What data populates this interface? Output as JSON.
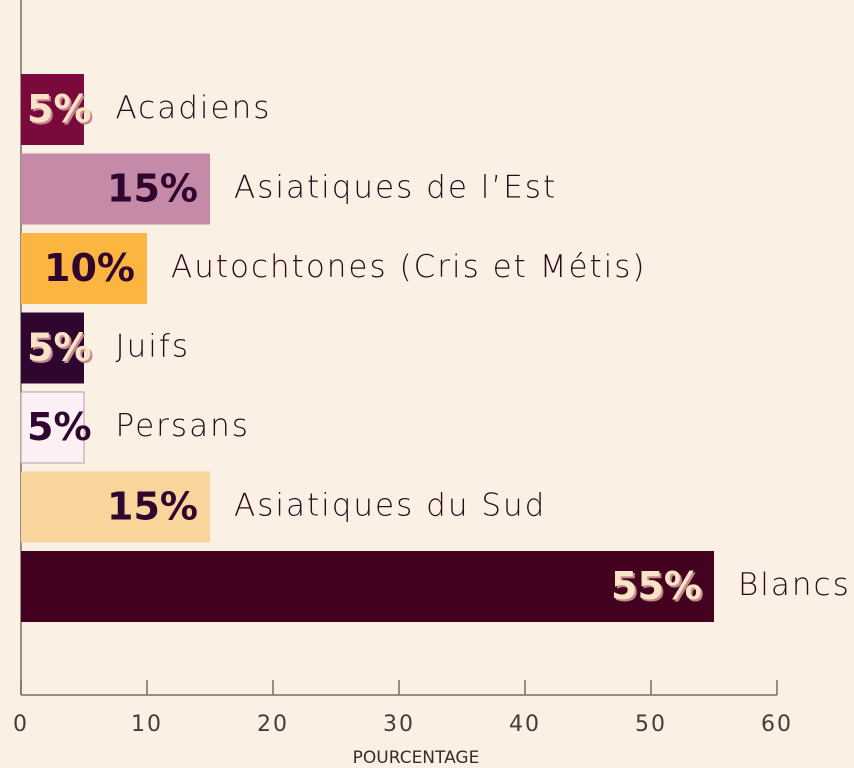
{
  "chart_data": {
    "type": "hbar",
    "categories": [
      "Acadiens",
      "Asiatiques de l’Est",
      "Autochtones (Cris et Métis)",
      "Juifs",
      "Persans",
      "Asiatiques du Sud",
      "Blancs"
    ],
    "values": [
      5,
      15,
      10,
      5,
      5,
      15,
      55
    ],
    "value_labels": [
      "5%",
      "15%",
      "10%",
      "5%",
      "5%",
      "15%",
      "55%"
    ],
    "colors": [
      "#7a0a3c",
      "#c48aa8",
      "#fbb540",
      "#2e0630",
      "#fdf0f4",
      "#f9d49b",
      "#430320"
    ],
    "xlabel": "POURCENTAGE",
    "xlim": [
      0,
      60
    ],
    "xticks": [
      0,
      10,
      20,
      30,
      40,
      50,
      60
    ]
  }
}
